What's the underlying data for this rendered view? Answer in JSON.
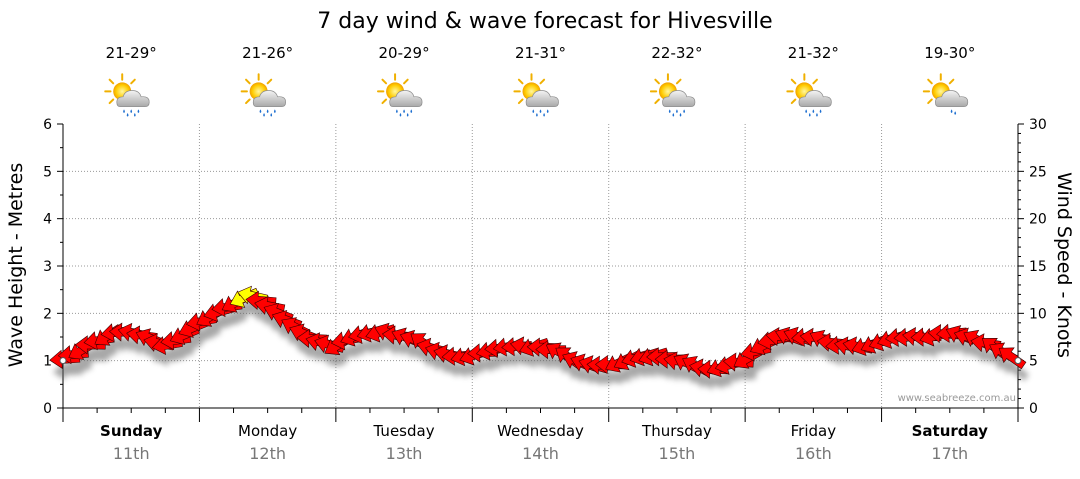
{
  "chart_data": {
    "type": "line",
    "title": "7 day wind & wave forecast for Hivesville",
    "ylabel": "Wave Height - Metres",
    "y2label": "Wind Speed - Knots",
    "ylim": [
      0,
      6
    ],
    "y2lim": [
      0,
      30
    ],
    "yticks": [
      "0",
      "1",
      "2",
      "3",
      "4",
      "5",
      "6"
    ],
    "y2ticks": [
      "0",
      "5",
      "10",
      "15",
      "20",
      "25",
      "30"
    ],
    "grid": true,
    "watermark": "www.seabreeze.com.au",
    "days": [
      {
        "name": "Sunday",
        "date": "11th",
        "temp": "21-29°",
        "bold": true,
        "icon": "sun-cloud-rain-icon"
      },
      {
        "name": "Monday",
        "date": "12th",
        "temp": "21-26°",
        "bold": false,
        "icon": "sun-cloud-rain-icon"
      },
      {
        "name": "Tuesday",
        "date": "13th",
        "temp": "20-29°",
        "bold": false,
        "icon": "sun-cloud-rain-icon"
      },
      {
        "name": "Wednesday",
        "date": "14th",
        "temp": "21-31°",
        "bold": false,
        "icon": "sun-cloud-rain-icon"
      },
      {
        "name": "Thursday",
        "date": "15th",
        "temp": "22-32°",
        "bold": false,
        "icon": "sun-cloud-rain-icon"
      },
      {
        "name": "Friday",
        "date": "16th",
        "temp": "21-32°",
        "bold": false,
        "icon": "sun-cloud-rain-icon"
      },
      {
        "name": "Saturday",
        "date": "17th",
        "temp": "19-30°",
        "bold": true,
        "icon": "sun-cloud-light-rain-icon"
      }
    ],
    "series": [
      {
        "name": "",
        "axis": "right",
        "unit": "knots",
        "x_days": [
          0,
          0.125,
          0.25,
          0.375,
          0.5,
          0.625,
          0.75,
          0.875,
          1.0,
          1.125,
          1.25,
          1.375,
          1.5,
          1.625,
          1.75,
          1.875,
          2.0,
          2.125,
          2.25,
          2.375,
          2.5,
          2.625,
          2.75,
          2.875,
          3.0,
          3.125,
          3.25,
          3.375,
          3.5,
          3.625,
          3.75,
          3.875,
          4.0,
          4.125,
          4.25,
          4.375,
          4.5,
          4.625,
          4.75,
          4.875,
          5.0,
          5.125,
          5.25,
          5.375,
          5.5,
          5.625,
          5.75,
          5.875,
          6.0,
          6.125,
          6.25,
          6.375,
          6.5,
          6.625,
          6.75,
          6.875,
          7.0
        ],
        "values": [
          5,
          6,
          7,
          8,
          8,
          7.5,
          6.5,
          7.5,
          9,
          10,
          11,
          12,
          11,
          9.5,
          8,
          7,
          6.5,
          7.5,
          8,
          8,
          7.5,
          7,
          6,
          5.5,
          5.5,
          6,
          6.5,
          6.5,
          6.5,
          6,
          5,
          4.5,
          4.5,
          5,
          5.5,
          5.5,
          5,
          4.5,
          4,
          4.5,
          5,
          6.5,
          7.5,
          7.5,
          7.5,
          7,
          6.5,
          6.5,
          7,
          7.5,
          7.5,
          7.5,
          8,
          7.5,
          7,
          6,
          5
        ],
        "colors": {
          "low": "#ff0000",
          "high": "#ffff00"
        }
      }
    ]
  }
}
